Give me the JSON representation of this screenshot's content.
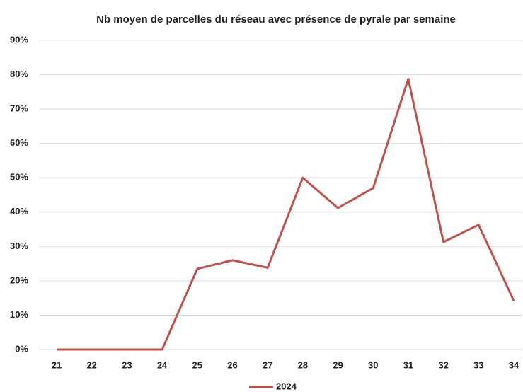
{
  "chart_data": {
    "type": "line",
    "title": "Nb moyen de parcelles du réseau avec présence de pyrale par semaine",
    "categories": [
      "21",
      "22",
      "23",
      "24",
      "25",
      "26",
      "27",
      "28",
      "29",
      "30",
      "31",
      "32",
      "33",
      "34"
    ],
    "series": [
      {
        "name": "2024",
        "color": "#c0504d",
        "values": [
          0,
          0,
          0,
          0,
          23.5,
          26,
          23.8,
          50,
          41.2,
          47,
          78.8,
          31.3,
          36.3,
          14.2
        ]
      }
    ],
    "ylim": [
      0,
      90
    ],
    "yticks": [
      {
        "value": 0,
        "label": "0%"
      },
      {
        "value": 10,
        "label": "10%"
      },
      {
        "value": 20,
        "label": "20%"
      },
      {
        "value": 30,
        "label": "30%"
      },
      {
        "value": 40,
        "label": "40%"
      },
      {
        "value": 50,
        "label": "50%"
      },
      {
        "value": 60,
        "label": "60%"
      },
      {
        "value": 70,
        "label": "70%"
      },
      {
        "value": 80,
        "label": "80%"
      },
      {
        "value": 90,
        "label": "90%"
      }
    ],
    "grid": true,
    "legend": "bottom"
  }
}
